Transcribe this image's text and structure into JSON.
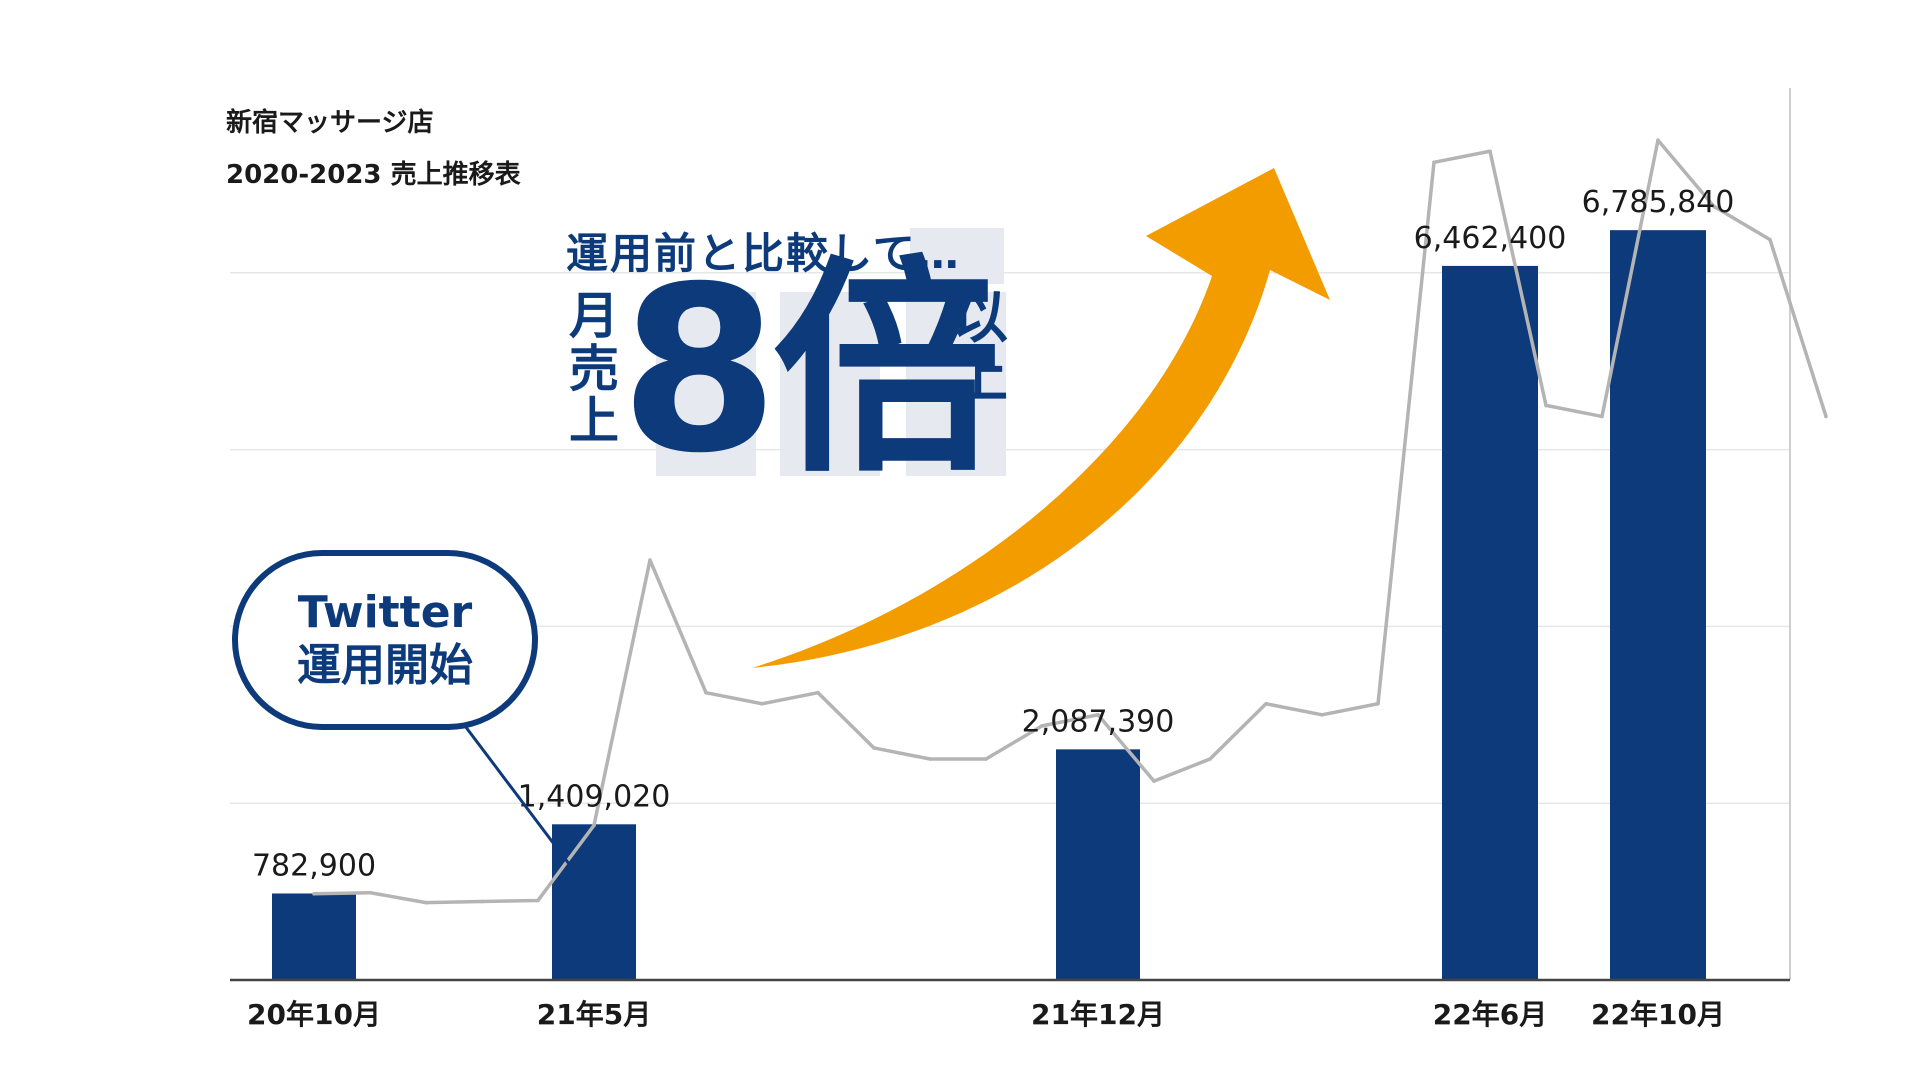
{
  "chart_data": {
    "type": "bar",
    "title": "新宿マッサージ店",
    "subtitle": "2020-2023 売上推移表",
    "xlabel": "",
    "ylabel": "",
    "ylim": [
      0,
      8000000
    ],
    "grid": true,
    "categories": [
      "20年10月",
      "21年5月",
      "21年12月",
      "22年6月",
      "22年10月"
    ],
    "bars": [
      {
        "category": "20年10月",
        "value": 782900,
        "label": "782,900"
      },
      {
        "category": "21年5月",
        "value": 1409020,
        "label": "1,409,020"
      },
      {
        "category": "21年12月",
        "value": 2087390,
        "label": "2,087,390"
      },
      {
        "category": "22年6月",
        "value": 6462400,
        "label": "6,462,400"
      },
      {
        "category": "22年10月",
        "value": 6785840,
        "label": "6,785,840"
      }
    ],
    "trend_line": [
      {
        "month": "2020-10",
        "value": 780000
      },
      {
        "month": "2020-11",
        "value": 790000
      },
      {
        "month": "2020-12",
        "value": 700000
      },
      {
        "month": "2021-01",
        "value": 710000
      },
      {
        "month": "2021-02",
        "value": 720000
      },
      {
        "month": "2021-03",
        "value": 1400000
      },
      {
        "month": "2021-04",
        "value": 3800000
      },
      {
        "month": "2021-05",
        "value": 2600000
      },
      {
        "month": "2021-06",
        "value": 2500000
      },
      {
        "month": "2021-07",
        "value": 2600000
      },
      {
        "month": "2021-08",
        "value": 2100000
      },
      {
        "month": "2021-09",
        "value": 2000000
      },
      {
        "month": "2021-10",
        "value": 2000000
      },
      {
        "month": "2021-11",
        "value": 2300000
      },
      {
        "month": "2021-12",
        "value": 2400000
      },
      {
        "month": "2022-01",
        "value": 1800000
      },
      {
        "month": "2022-02",
        "value": 2000000
      },
      {
        "month": "2022-03",
        "value": 2500000
      },
      {
        "month": "2022-04",
        "value": 2400000
      },
      {
        "month": "2022-05",
        "value": 2500000
      },
      {
        "month": "2022-06",
        "value": 7400000
      },
      {
        "month": "2022-07",
        "value": 7500000
      },
      {
        "month": "2022-08",
        "value": 5200000
      },
      {
        "month": "2022-09",
        "value": 5100000
      },
      {
        "month": "2022-10",
        "value": 7600000
      },
      {
        "month": "2022-11",
        "value": 7000000
      },
      {
        "month": "2022-12",
        "value": 6700000
      },
      {
        "month": "2023-01",
        "value": 5100000
      }
    ],
    "annotation": {
      "bubble_lines": [
        "Twitter",
        "運用開始"
      ],
      "pointer_month": "2021-03"
    },
    "headline": {
      "sub": "運用前と比較して…",
      "left_vertical": [
        "月",
        "売",
        "上"
      ],
      "big": "8倍",
      "right_vertical": [
        "以",
        "上"
      ]
    }
  },
  "colors": {
    "bar": "#0d3a7a",
    "trend_line": "#b4b4b4",
    "arrow": "#f39c00",
    "headline": "#0d3a7a",
    "grid": "#e7e7e7",
    "axis": "#444444",
    "text": "#1a1a1a"
  }
}
